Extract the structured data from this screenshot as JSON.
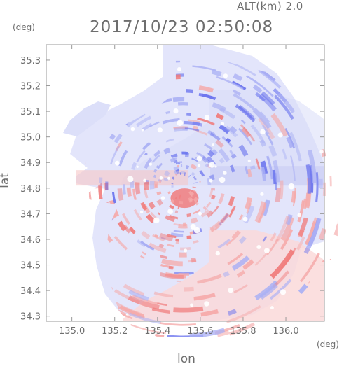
{
  "header": {
    "altitude": "ALT(km) 2.0",
    "datetime": "2017/10/23 02:50:08"
  },
  "chart_data": {
    "type": "heatmap",
    "description_units": {
      "x": "deg",
      "y": "deg"
    },
    "xlabel": "lon",
    "ylabel": "lat",
    "xunit": "(deg)",
    "yunit": "(deg)",
    "xlim": [
      134.88,
      136.18
    ],
    "ylim": [
      34.28,
      35.36
    ],
    "xticks": [
      "135.0",
      "135.2",
      "135.4",
      "135.6",
      "135.8",
      "136.0"
    ],
    "xtick_values": [
      135.0,
      135.2,
      135.4,
      135.6,
      135.8,
      136.0
    ],
    "yticks": [
      "34.3",
      "34.4",
      "34.5",
      "34.6",
      "34.7",
      "34.8",
      "34.9",
      "35.0",
      "35.1",
      "35.2",
      "35.3"
    ],
    "ytick_values": [
      34.3,
      34.4,
      34.5,
      34.6,
      34.7,
      34.8,
      34.9,
      35.0,
      35.1,
      35.2,
      35.3
    ],
    "radar_center": {
      "lon": 135.52,
      "lat": 34.81
    },
    "colors": {
      "toward": "#6b74ee",
      "away": "#f07c7c",
      "near_zero": "#f3f3fb"
    },
    "field_summary": "Doppler-type field: bluish values north of lat 34.8, reddish values south of lat 34.8, white in gaps"
  }
}
